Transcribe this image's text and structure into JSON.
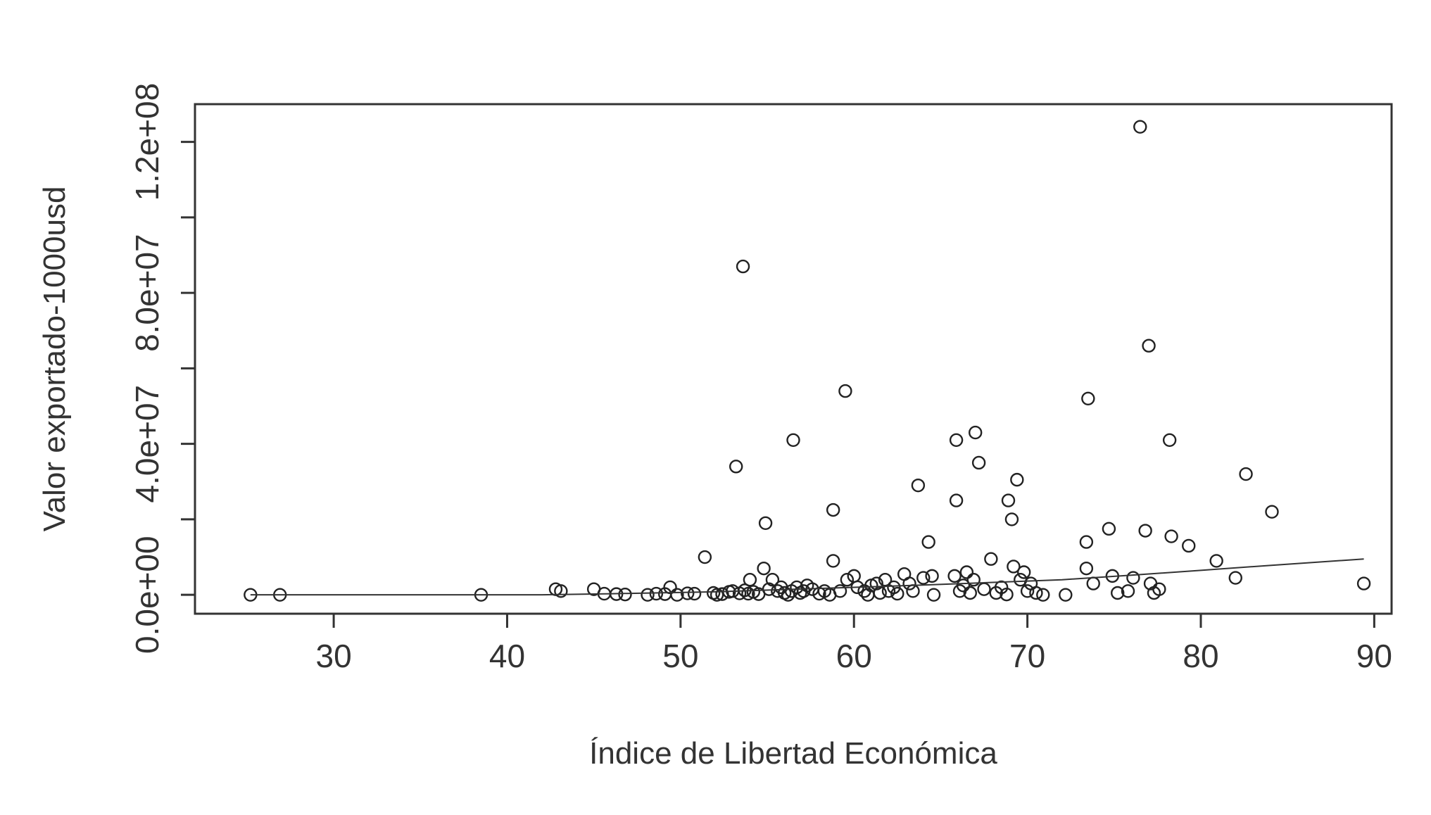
{
  "chart_data": {
    "type": "scatter",
    "title": "",
    "xlabel": "Índice de Libertad Económica",
    "ylabel": "Valor exportado-1000usd",
    "xlim": [
      22,
      91
    ],
    "ylim": [
      -5000000,
      130000000
    ],
    "xticks": [
      30,
      40,
      50,
      60,
      70,
      80,
      90
    ],
    "xtick_labels": [
      "30",
      "40",
      "50",
      "60",
      "70",
      "80",
      "90"
    ],
    "yticks": [
      0,
      20000000,
      40000000,
      60000000,
      80000000,
      100000000,
      120000000
    ],
    "ytick_labels": [
      "0.0e+00",
      "",
      "4.0e+07",
      "",
      "8.0e+07",
      "",
      "1.2e+08"
    ],
    "grid": false,
    "legend": "none",
    "points": [
      {
        "x": 25.2,
        "y": 0
      },
      {
        "x": 26.9,
        "y": 0
      },
      {
        "x": 38.5,
        "y": 0
      },
      {
        "x": 42.8,
        "y": 1500000
      },
      {
        "x": 43.1,
        "y": 1000000
      },
      {
        "x": 45.0,
        "y": 1500000
      },
      {
        "x": 45.6,
        "y": 300000
      },
      {
        "x": 46.3,
        "y": 200000
      },
      {
        "x": 46.8,
        "y": 100000
      },
      {
        "x": 48.1,
        "y": 0
      },
      {
        "x": 48.6,
        "y": 300000
      },
      {
        "x": 49.1,
        "y": 200000
      },
      {
        "x": 49.4,
        "y": 2000000
      },
      {
        "x": 49.8,
        "y": 0
      },
      {
        "x": 50.4,
        "y": 400000
      },
      {
        "x": 50.8,
        "y": 300000
      },
      {
        "x": 51.4,
        "y": 10000000
      },
      {
        "x": 51.9,
        "y": 500000
      },
      {
        "x": 52.1,
        "y": 0
      },
      {
        "x": 52.4,
        "y": 200000
      },
      {
        "x": 52.8,
        "y": 800000
      },
      {
        "x": 53.0,
        "y": 1000000
      },
      {
        "x": 53.2,
        "y": 34000000
      },
      {
        "x": 53.4,
        "y": 400000
      },
      {
        "x": 53.6,
        "y": 87000000
      },
      {
        "x": 53.7,
        "y": 1200000
      },
      {
        "x": 53.9,
        "y": 300000
      },
      {
        "x": 54.0,
        "y": 4000000
      },
      {
        "x": 54.2,
        "y": 800000
      },
      {
        "x": 54.5,
        "y": 200000
      },
      {
        "x": 54.8,
        "y": 7000000
      },
      {
        "x": 54.9,
        "y": 19000000
      },
      {
        "x": 55.1,
        "y": 1500000
      },
      {
        "x": 55.3,
        "y": 4000000
      },
      {
        "x": 55.6,
        "y": 1000000
      },
      {
        "x": 55.8,
        "y": 2000000
      },
      {
        "x": 56.0,
        "y": 500000
      },
      {
        "x": 56.2,
        "y": 0
      },
      {
        "x": 56.4,
        "y": 1000000
      },
      {
        "x": 56.5,
        "y": 41000000
      },
      {
        "x": 56.7,
        "y": 2000000
      },
      {
        "x": 56.9,
        "y": 500000
      },
      {
        "x": 57.1,
        "y": 1000000
      },
      {
        "x": 57.3,
        "y": 2500000
      },
      {
        "x": 57.6,
        "y": 1500000
      },
      {
        "x": 58.0,
        "y": 300000
      },
      {
        "x": 58.3,
        "y": 1000000
      },
      {
        "x": 58.6,
        "y": 0
      },
      {
        "x": 58.8,
        "y": 22500000
      },
      {
        "x": 58.8,
        "y": 9000000
      },
      {
        "x": 59.2,
        "y": 1000000
      },
      {
        "x": 59.5,
        "y": 54000000
      },
      {
        "x": 59.6,
        "y": 4000000
      },
      {
        "x": 60.0,
        "y": 5000000
      },
      {
        "x": 60.2,
        "y": 2000000
      },
      {
        "x": 60.6,
        "y": 1000000
      },
      {
        "x": 60.8,
        "y": 0
      },
      {
        "x": 61.0,
        "y": 2500000
      },
      {
        "x": 61.3,
        "y": 3000000
      },
      {
        "x": 61.5,
        "y": 500000
      },
      {
        "x": 61.8,
        "y": 4000000
      },
      {
        "x": 62.0,
        "y": 1000000
      },
      {
        "x": 62.3,
        "y": 2000000
      },
      {
        "x": 62.5,
        "y": 300000
      },
      {
        "x": 62.9,
        "y": 5500000
      },
      {
        "x": 63.2,
        "y": 3000000
      },
      {
        "x": 63.4,
        "y": 1000000
      },
      {
        "x": 63.7,
        "y": 29000000
      },
      {
        "x": 64.0,
        "y": 4500000
      },
      {
        "x": 64.3,
        "y": 14000000
      },
      {
        "x": 64.5,
        "y": 5000000
      },
      {
        "x": 64.6,
        "y": 0
      },
      {
        "x": 65.9,
        "y": 41000000
      },
      {
        "x": 65.9,
        "y": 25000000
      },
      {
        "x": 65.8,
        "y": 5000000
      },
      {
        "x": 66.1,
        "y": 1000000
      },
      {
        "x": 66.3,
        "y": 2500000
      },
      {
        "x": 66.5,
        "y": 6000000
      },
      {
        "x": 66.7,
        "y": 500000
      },
      {
        "x": 66.9,
        "y": 4000000
      },
      {
        "x": 67.0,
        "y": 43000000
      },
      {
        "x": 67.2,
        "y": 35000000
      },
      {
        "x": 67.5,
        "y": 1500000
      },
      {
        "x": 67.9,
        "y": 9500000
      },
      {
        "x": 68.2,
        "y": 500000
      },
      {
        "x": 68.5,
        "y": 2000000
      },
      {
        "x": 68.8,
        "y": 100000
      },
      {
        "x": 68.9,
        "y": 25000000
      },
      {
        "x": 69.1,
        "y": 20000000
      },
      {
        "x": 69.2,
        "y": 7500000
      },
      {
        "x": 69.4,
        "y": 30500000
      },
      {
        "x": 69.6,
        "y": 4000000
      },
      {
        "x": 69.8,
        "y": 6000000
      },
      {
        "x": 70.0,
        "y": 1000000
      },
      {
        "x": 70.2,
        "y": 3000000
      },
      {
        "x": 70.5,
        "y": 500000
      },
      {
        "x": 70.9,
        "y": 0
      },
      {
        "x": 72.2,
        "y": 0
      },
      {
        "x": 73.4,
        "y": 14000000
      },
      {
        "x": 73.5,
        "y": 52000000
      },
      {
        "x": 73.4,
        "y": 7000000
      },
      {
        "x": 73.8,
        "y": 3000000
      },
      {
        "x": 74.7,
        "y": 17500000
      },
      {
        "x": 74.9,
        "y": 5000000
      },
      {
        "x": 75.2,
        "y": 500000
      },
      {
        "x": 75.8,
        "y": 1000000
      },
      {
        "x": 76.1,
        "y": 4500000
      },
      {
        "x": 76.5,
        "y": 124000000
      },
      {
        "x": 76.8,
        "y": 17000000
      },
      {
        "x": 77.0,
        "y": 66000000
      },
      {
        "x": 77.1,
        "y": 3000000
      },
      {
        "x": 77.3,
        "y": 500000
      },
      {
        "x": 77.6,
        "y": 1500000
      },
      {
        "x": 78.2,
        "y": 41000000
      },
      {
        "x": 78.3,
        "y": 15500000
      },
      {
        "x": 79.3,
        "y": 13000000
      },
      {
        "x": 80.9,
        "y": 9000000
      },
      {
        "x": 82.0,
        "y": 4500000
      },
      {
        "x": 82.6,
        "y": 32000000
      },
      {
        "x": 84.1,
        "y": 22000000
      },
      {
        "x": 89.4,
        "y": 3000000
      }
    ],
    "trend_line": [
      {
        "x": 25.2,
        "y": 0
      },
      {
        "x": 42,
        "y": 0
      },
      {
        "x": 46,
        "y": 300000
      },
      {
        "x": 52,
        "y": 800000
      },
      {
        "x": 56,
        "y": 1400000
      },
      {
        "x": 60,
        "y": 2000000
      },
      {
        "x": 64,
        "y": 2600000
      },
      {
        "x": 68,
        "y": 3300000
      },
      {
        "x": 72,
        "y": 4000000
      },
      {
        "x": 76,
        "y": 5200000
      },
      {
        "x": 80,
        "y": 6500000
      },
      {
        "x": 84,
        "y": 7800000
      },
      {
        "x": 89.4,
        "y": 9500000
      }
    ]
  }
}
